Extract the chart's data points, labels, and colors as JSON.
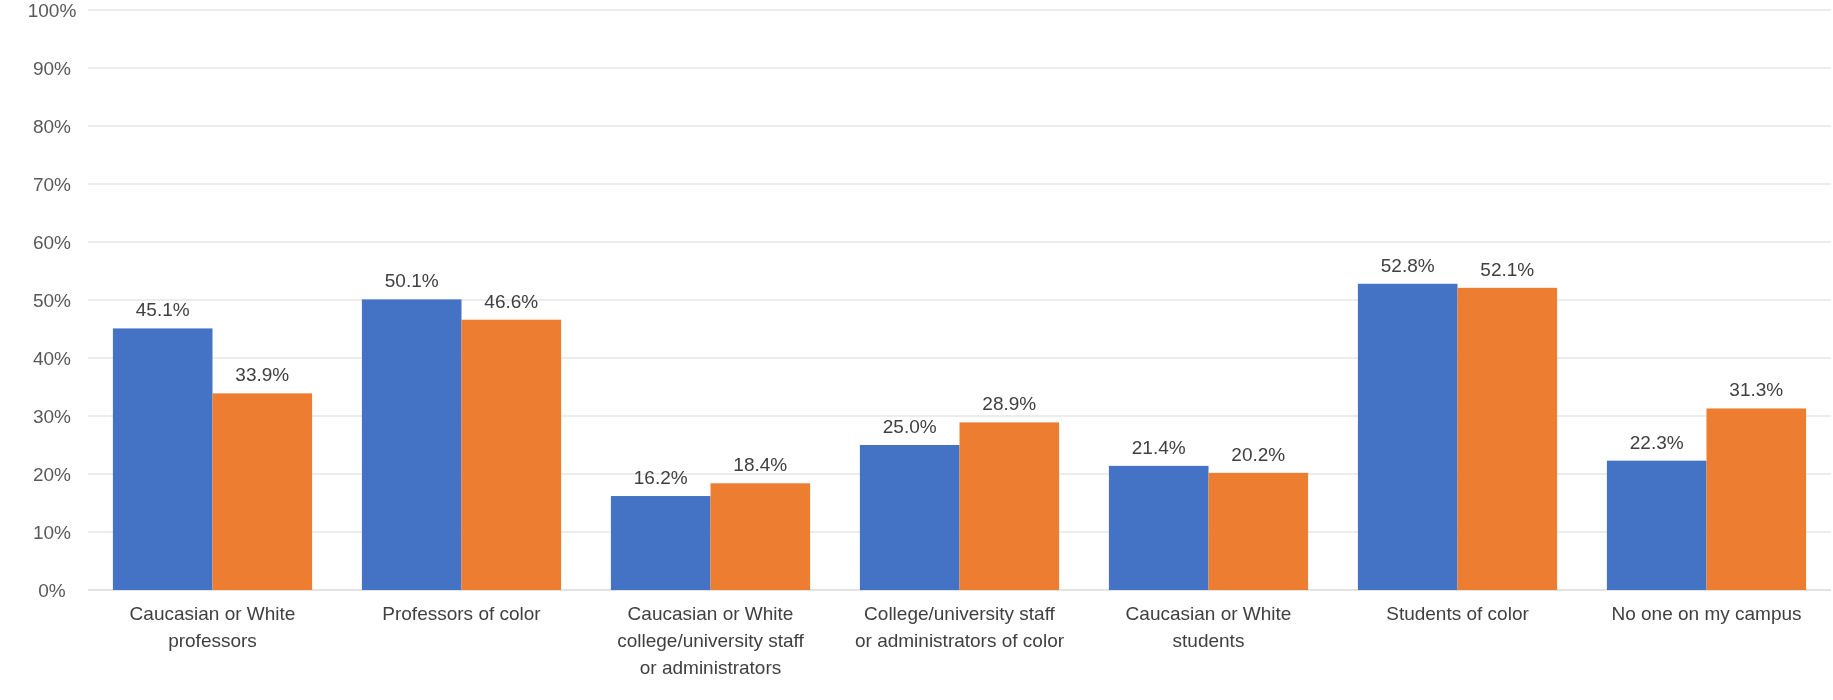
{
  "chart_data": {
    "type": "bar",
    "categories": [
      "Caucasian or White professors",
      "Professors of color",
      "Caucasian or White college/university staff or administrators",
      "College/university staff or administrators of color",
      "Caucasian or White students",
      "Students of color",
      "No one on my campus"
    ],
    "series": [
      {
        "color": "#4472c4",
        "values": [
          45.1,
          50.1,
          16.2,
          25.0,
          21.4,
          52.8,
          22.3
        ],
        "value_labels": [
          "45.1%",
          "50.1%",
          "16.2%",
          "25.0%",
          "21.4%",
          "52.8%",
          "22.3%"
        ]
      },
      {
        "color": "#ed7d31",
        "values": [
          33.9,
          46.6,
          18.4,
          28.9,
          20.2,
          52.1,
          31.3
        ],
        "value_labels": [
          "33.9%",
          "46.6%",
          "18.4%",
          "28.9%",
          "20.2%",
          "52.1%",
          "31.3%"
        ]
      }
    ],
    "ylim": [
      0,
      100
    ],
    "yticks": [
      {
        "value": 0,
        "label": "0%"
      },
      {
        "value": 10,
        "label": "10%"
      },
      {
        "value": 20,
        "label": "20%"
      },
      {
        "value": 30,
        "label": "30%"
      },
      {
        "value": 40,
        "label": "40%"
      },
      {
        "value": 50,
        "label": "50%"
      },
      {
        "value": 60,
        "label": "60%"
      },
      {
        "value": 70,
        "label": "70%"
      },
      {
        "value": 80,
        "label": "80%"
      },
      {
        "value": 90,
        "label": "90%"
      },
      {
        "value": 100,
        "label": "100%"
      }
    ],
    "grid": "y"
  }
}
